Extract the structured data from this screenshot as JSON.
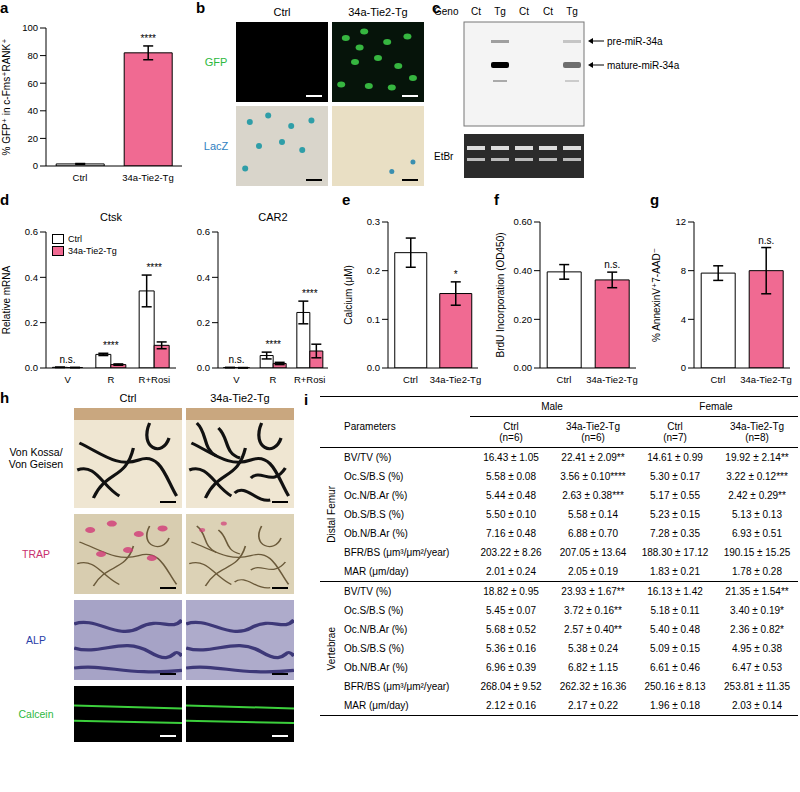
{
  "chart_data": [
    {
      "panel": "a",
      "type": "bar",
      "categories": [
        "Ctrl",
        "34a-Tie2-Tg"
      ],
      "values": [
        1.5,
        82
      ],
      "errors": [
        0.3,
        5
      ],
      "colors": [
        "#ffffff",
        "#f06a92"
      ],
      "annotations": [
        null,
        "****"
      ],
      "ylabel": "% GFP⁺ in c-Fms⁺RANK⁺",
      "ylim": [
        0,
        100
      ],
      "yticks": [
        0,
        20,
        40,
        60,
        80,
        100
      ]
    },
    {
      "panel": "d",
      "type": "bar",
      "title": "Ctsk",
      "ylabel": "Relative mRNA",
      "categories": [
        "V",
        "R",
        "R+Rosi"
      ],
      "series": [
        {
          "name": "Ctrl",
          "color": "#ffffff",
          "values": [
            0.003,
            0.06,
            0.34
          ],
          "errors": [
            0.001,
            0.005,
            0.07
          ]
        },
        {
          "name": "34a-Tie2-Tg",
          "color": "#f06a92",
          "values": [
            0.002,
            0.015,
            0.1
          ],
          "errors": [
            0.001,
            0.003,
            0.015
          ]
        }
      ],
      "annotations": [
        "n.s.",
        "****",
        "****"
      ],
      "legend": "upper left",
      "ylim": [
        0,
        0.6
      ],
      "yticks": [
        {
          "value": 0,
          "label": "0.0"
        },
        0.2,
        0.4,
        0.6
      ]
    },
    {
      "type": "bar",
      "title": "CAR2",
      "categories": [
        "V",
        "R",
        "R+Rosi"
      ],
      "series": [
        {
          "name": "Ctrl",
          "color": "#ffffff",
          "values": [
            0.002,
            0.055,
            0.245
          ],
          "errors": [
            0.001,
            0.015,
            0.05
          ]
        },
        {
          "name": "34a-Tie2-Tg",
          "color": "#f06a92",
          "values": [
            0.001,
            0.02,
            0.075
          ],
          "errors": [
            0.001,
            0.005,
            0.03
          ]
        }
      ],
      "annotations": [
        "n.s.",
        "****",
        "****"
      ],
      "ylim": [
        0,
        0.6
      ],
      "yticks": [
        {
          "value": 0,
          "label": "0.0"
        },
        0.2,
        0.4,
        0.6
      ]
    },
    {
      "panel": "e",
      "type": "bar",
      "categories": [
        "Ctrl",
        "34a-Tie2-Tg"
      ],
      "values": [
        0.237,
        0.153
      ],
      "errors": [
        0.03,
        0.024
      ],
      "colors": [
        "#ffffff",
        "#f06a92"
      ],
      "annotations": [
        null,
        "*"
      ],
      "ylabel": "Calcium (μM)",
      "ylim": [
        0,
        0.3
      ],
      "yticks": [
        {
          "value": 0,
          "label": "0.0"
        },
        0.1,
        0.2,
        0.3
      ]
    },
    {
      "panel": "f",
      "type": "bar",
      "categories": [
        "Ctrl",
        "34a-Tie2-Tg"
      ],
      "values": [
        0.395,
        0.362
      ],
      "errors": [
        0.03,
        0.032
      ],
      "colors": [
        "#ffffff",
        "#f06a92"
      ],
      "annotations": [
        null,
        "n.s."
      ],
      "ylabel": "BrdU Incorporation (OD450)",
      "ylim": [
        0,
        0.6
      ],
      "yticks": [
        {
          "value": 0,
          "label": "0.00"
        },
        {
          "value": 0.2,
          "label": "0.20"
        },
        {
          "value": 0.4,
          "label": "0.40"
        },
        {
          "value": 0.6,
          "label": "0.60"
        }
      ]
    },
    {
      "panel": "g",
      "type": "bar",
      "categories": [
        "Ctrl",
        "34a-Tie2-Tg"
      ],
      "values": [
        7.8,
        8.0
      ],
      "errors": [
        0.6,
        1.9
      ],
      "colors": [
        "#ffffff",
        "#f06a92"
      ],
      "annotations": [
        null,
        "n.s."
      ],
      "ylabel": "% AnnexinV⁺7-AAD⁻",
      "ylim": [
        0,
        12
      ],
      "yticks": [
        0,
        4,
        8,
        12
      ]
    }
  ],
  "image_panel_b": {
    "panel": "b",
    "columns": [
      "Ctrl",
      "34a-Tie2-Tg"
    ],
    "rows": [
      "GFP",
      "LacZ"
    ]
  },
  "blot_panel_c": {
    "panel": "c",
    "header": "Geno",
    "lanes": [
      "Ct",
      "Tg",
      "Ct",
      "Ct",
      "Tg"
    ],
    "bands": [
      "pre-miR-34a",
      "mature-miR-34a"
    ],
    "loading": "EtBr"
  },
  "image_panel_h": {
    "panel": "h",
    "columns": [
      "Ctrl",
      "34a-Tie2-Tg"
    ],
    "rows": [
      "Von Kossa/ Von Geisen",
      "TRAP",
      "ALP",
      "Calcein"
    ]
  },
  "table_panel_i": {
    "panel": "i",
    "header": {
      "groups": [
        "Male",
        "Female"
      ],
      "columns": [
        "Parameters",
        "Ctrl",
        "34a-Tie2-Tg",
        "Ctrl",
        "34a-Tie2-Tg"
      ],
      "n": [
        "(n=6)",
        "(n=6)",
        "(n=7)",
        "(n=8)"
      ]
    },
    "sections": [
      {
        "name": "Distal Femur",
        "rows": [
          [
            "BV/TV (%)",
            "16.43 ± 1.05",
            "22.41 ± 2.09**",
            "14.61 ± 0.99",
            "19.92 ± 2.14**"
          ],
          [
            "Oc.S/B.S (%)",
            "5.58 ± 0.08",
            "3.56 ± 0.10****",
            "5.30 ± 0.17",
            "3.22 ± 0.12***"
          ],
          [
            "Oc.N/B.Ar (%)",
            "5.44 ± 0.48",
            "2.63 ± 0.38***",
            "5.17 ± 0.55",
            "2.42 ± 0.29**"
          ],
          [
            "Ob.S/B.S (%)",
            "5.50 ± 0.10",
            "5.58 ± 0.14",
            "5.23 ± 0.15",
            "5.13 ± 0.13"
          ],
          [
            "Ob.N/B.Ar (%)",
            "7.16 ± 0.48",
            "6.88 ± 0.70",
            "7.28 ± 0.35",
            "6.93 ± 0.51"
          ],
          [
            "BFR/BS (μm³/μm²/year)",
            "203.22 ± 8.26",
            "207.05 ± 13.64",
            "188.30 ± 17.12",
            "190.15 ± 15.25"
          ],
          [
            "MAR (μm/day)",
            "2.01 ± 0.24",
            "2.05 ± 0.19",
            "1.83 ± 0.21",
            "1.78 ± 0.28"
          ]
        ]
      },
      {
        "name": "Vertebrae",
        "rows": [
          [
            "BV/TV (%)",
            "18.82 ± 0.95",
            "23.93 ± 1.67**",
            "16.13 ± 1.42",
            "21.35 ± 1.54**"
          ],
          [
            "Oc.S/B.S (%)",
            "5.45 ± 0.07",
            "3.72 ± 0.16**",
            "5.18 ± 0.11",
            "3.40 ± 0.19*"
          ],
          [
            "Oc.N/B.Ar (%)",
            "5.68 ± 0.52",
            "2.57 ± 0.40**",
            "5.40 ± 0.48",
            "2.36 ± 0.82*"
          ],
          [
            "Ob.S/B.S (%)",
            "5.36 ± 0.16",
            "5.38 ± 0.24",
            "5.09 ± 0.15",
            "4.95 ± 0.38"
          ],
          [
            "Ob.N/B.Ar (%)",
            "6.96 ± 0.39",
            "6.82 ± 1.15",
            "6.61 ± 0.46",
            "6.47 ± 0.53"
          ],
          [
            "BFR/BS (μm³/μm²/year)",
            "268.04 ± 9.52",
            "262.32 ± 16.36",
            "250.16 ± 8.13",
            "253.81 ± 11.35"
          ],
          [
            "MAR (μm/day)",
            "2.12 ± 0.16",
            "2.17 ± 0.22",
            "1.96 ± 0.18",
            "2.03 ± 0.14"
          ]
        ]
      }
    ]
  }
}
